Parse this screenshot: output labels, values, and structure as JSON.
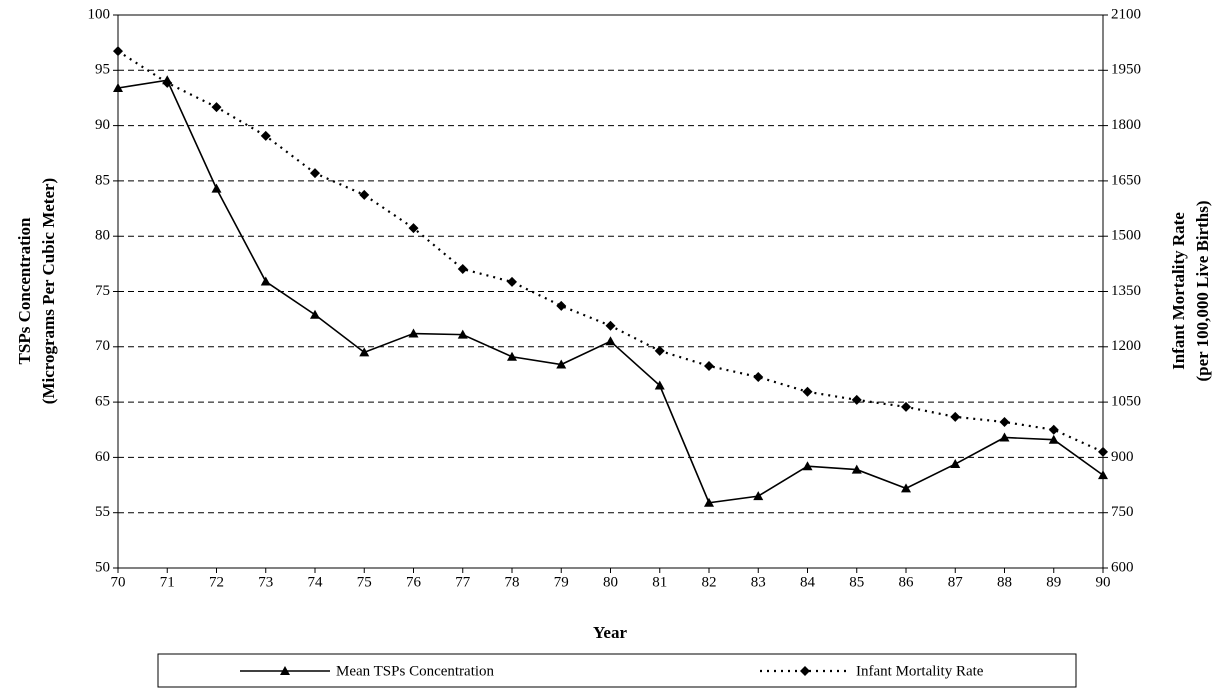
{
  "chart_data": {
    "type": "line",
    "xlabel": "Year",
    "ylabel": [
      "TSPs Concentration",
      "(Micrograms Per Cubic Meter)"
    ],
    "y2label": [
      "Infant Mortality Rate",
      "(per 100,000 Live Births)"
    ],
    "categories": [
      "70",
      "71",
      "72",
      "73",
      "74",
      "75",
      "76",
      "77",
      "78",
      "79",
      "80",
      "81",
      "82",
      "83",
      "84",
      "85",
      "86",
      "87",
      "88",
      "89",
      "90"
    ],
    "series": [
      {
        "name": "Mean TSPs Concentration",
        "color": "#000000",
        "style": "solid",
        "marker": "triangle",
        "values": [
          93.4,
          94.1,
          84.3,
          75.9,
          72.9,
          69.5,
          71.2,
          71.1,
          69.1,
          68.4,
          70.5,
          66.5,
          55.9,
          56.5,
          59.2,
          58.9,
          57.2,
          59.4,
          61.8,
          61.6,
          58.4
        ]
      },
      {
        "name": "Infant Mortality Rate",
        "color": "#000000",
        "style": "dotted",
        "marker": "diamond",
        "axis": "y2",
        "values": [
          2002,
          1916,
          1850,
          1772,
          1671,
          1612,
          1522,
          1411,
          1376,
          1311,
          1257,
          1189,
          1148,
          1118,
          1078,
          1056,
          1037,
          1010,
          996,
          975,
          915
        ]
      }
    ],
    "ylim": [
      50,
      100
    ],
    "yticks": [
      50,
      55,
      60,
      65,
      70,
      75,
      80,
      85,
      90,
      95,
      100
    ],
    "y2lim": [
      600,
      2100
    ],
    "y2ticks": [
      600,
      750,
      900,
      1050,
      1200,
      1350,
      1500,
      1650,
      1800,
      1950,
      2100
    ],
    "grid": true,
    "legend": "bottom"
  }
}
